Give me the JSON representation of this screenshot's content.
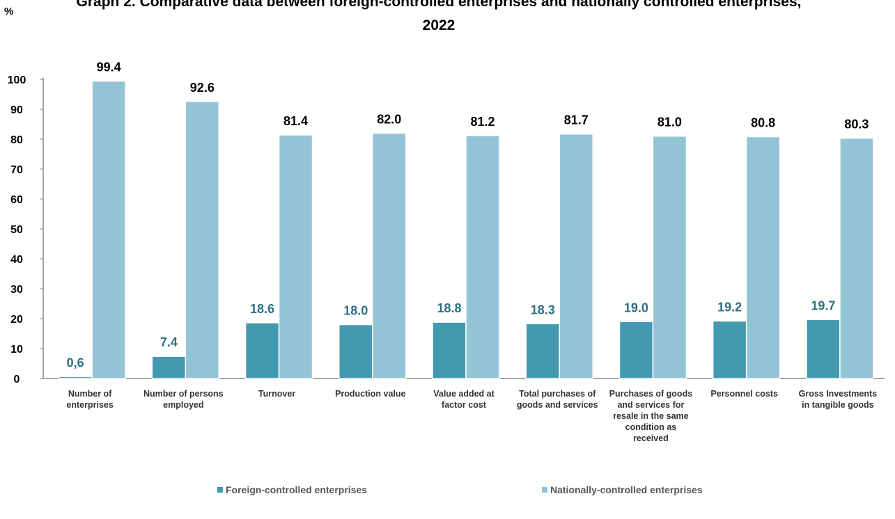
{
  "chart_data": {
    "type": "bar",
    "title": "Graph 2. Comparative data between foreign-controlled enterprises and nationally controlled enterprises, 2022",
    "ylabel": "%",
    "ylim": [
      0,
      100
    ],
    "yticks": [
      0,
      10,
      20,
      30,
      40,
      50,
      60,
      70,
      80,
      90,
      100
    ],
    "grid": false,
    "legend_position": "bottom",
    "categories": [
      [
        "Number of",
        "enterprises"
      ],
      [
        "Number of persons",
        "employed"
      ],
      [
        "Turnover"
      ],
      [
        "Production  value"
      ],
      [
        "Value added at",
        "factor cost"
      ],
      [
        "Total purchases of",
        "goods and services"
      ],
      [
        "Purchases of goods",
        "and services for",
        "resale in the same",
        "condition as",
        "received"
      ],
      [
        "Personnel costs"
      ],
      [
        "Gross Investments",
        "in tangible goods"
      ]
    ],
    "series": [
      {
        "name": "Foreign-controlled enterprises",
        "color": "#4399B0",
        "values": [
          0.6,
          7.4,
          18.6,
          18.0,
          18.8,
          18.3,
          19.0,
          19.2,
          19.7
        ],
        "labels": [
          "0,6",
          "7.4",
          "18.6",
          "18.0",
          "18.8",
          "18.3",
          "19.0",
          "19.2",
          "19.7"
        ],
        "label_color": "#2E6F82"
      },
      {
        "name": "Nationally-controlled enterprises",
        "color": "#93C4D6",
        "values": [
          99.4,
          92.6,
          81.4,
          82.0,
          81.2,
          81.7,
          81.0,
          80.8,
          80.3
        ],
        "labels": [
          "99.4",
          "92.6",
          "81.4",
          "82.0",
          "81.2",
          "81.7",
          "81.0",
          "80.8",
          "80.3"
        ],
        "label_color": "#000000"
      }
    ]
  }
}
